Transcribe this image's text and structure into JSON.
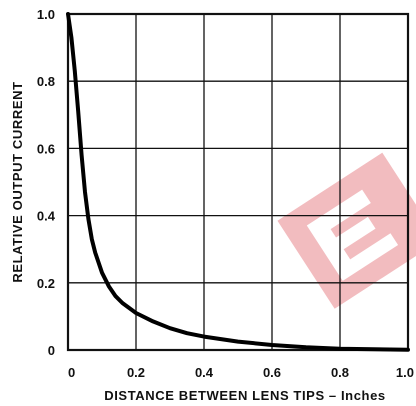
{
  "chart_data": {
    "type": "line",
    "xlabel": "DISTANCE BETWEEN LENS TIPS – Inches",
    "ylabel": "RELATIVE OUTPUT CURRENT",
    "xlim": [
      0,
      1.0
    ],
    "ylim": [
      0,
      1.0
    ],
    "x_ticks": [
      "0",
      "0.2",
      "0.4",
      "0.6",
      "0.8",
      "1.0"
    ],
    "y_ticks": [
      "0",
      "0.2",
      "0.4",
      "0.6",
      "0.8",
      "1.0"
    ],
    "grid": true,
    "series": [
      {
        "x": [
          0,
          0.01,
          0.02,
          0.03,
          0.04,
          0.05,
          0.06,
          0.07,
          0.08,
          0.09,
          0.1,
          0.12,
          0.14,
          0.16,
          0.2,
          0.25,
          0.3,
          0.35,
          0.4,
          0.5,
          0.6,
          0.7,
          0.8,
          0.9,
          1.0
        ],
        "y": [
          1.0,
          0.93,
          0.83,
          0.71,
          0.58,
          0.47,
          0.39,
          0.33,
          0.29,
          0.26,
          0.23,
          0.19,
          0.16,
          0.14,
          0.11,
          0.085,
          0.065,
          0.05,
          0.04,
          0.025,
          0.015,
          0.008,
          0.004,
          0.002,
          0.001
        ],
        "color": "#000000"
      }
    ]
  },
  "watermark": {
    "color": "#e8868b"
  }
}
